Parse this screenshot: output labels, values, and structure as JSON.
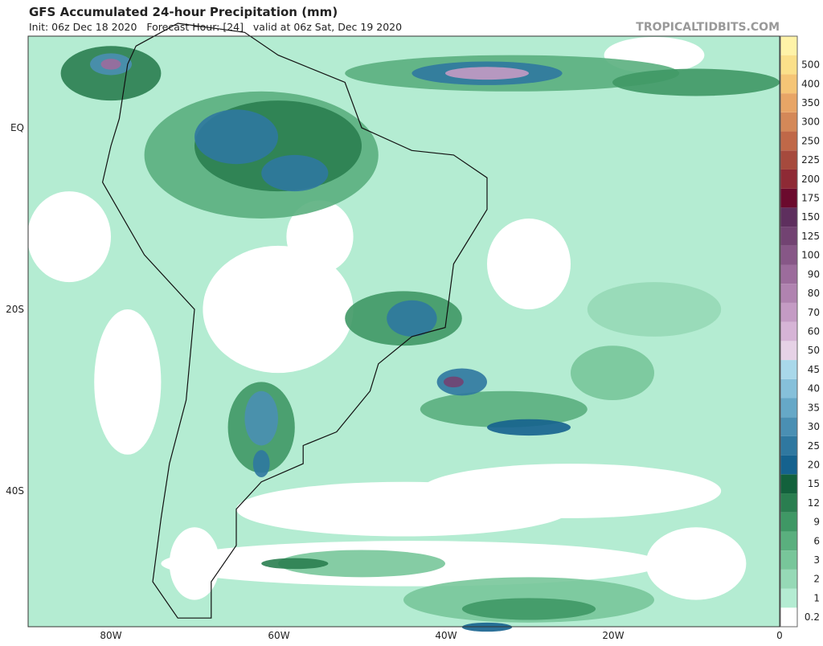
{
  "header": {
    "title": "GFS Accumulated 24-hour Precipitation (mm)",
    "subtitle": "Init: 06z Dec 18 2020   Forecast Hour: [24]   valid at 06z Sat, Dec 19 2020",
    "watermark": "TROPICALTIDBITS.COM"
  },
  "map": {
    "lon_labels": [
      "80W",
      "60W",
      "40W",
      "20W",
      "0"
    ],
    "lat_labels": [
      "EQ",
      "20S",
      "40S"
    ]
  },
  "colorbar": {
    "levels": [
      0.2,
      1,
      2,
      3,
      6,
      9,
      12,
      15,
      20,
      25,
      30,
      35,
      40,
      45,
      50,
      60,
      70,
      80,
      90,
      100,
      125,
      150,
      175,
      200,
      225,
      250,
      300,
      350,
      400,
      500
    ],
    "colors": [
      "#ffffff",
      "#b4ecd2",
      "#96d9b6",
      "#78c69a",
      "#5aaf7e",
      "#3f9865",
      "#2a7e50",
      "#13613c",
      "#15628e",
      "#2f78a0",
      "#4a8fb3",
      "#66a8c7",
      "#86c0da",
      "#a9d8ea",
      "#e6d2e6",
      "#d6b4d6",
      "#c49bc4",
      "#b083b0",
      "#9c6c9c",
      "#875787",
      "#724372",
      "#5e2f5e",
      "#6b0a2d",
      "#8e2a35",
      "#a64a3d",
      "#c06848",
      "#d48858",
      "#e8a566",
      "#f5c576",
      "#fbe08a"
    ]
  }
}
